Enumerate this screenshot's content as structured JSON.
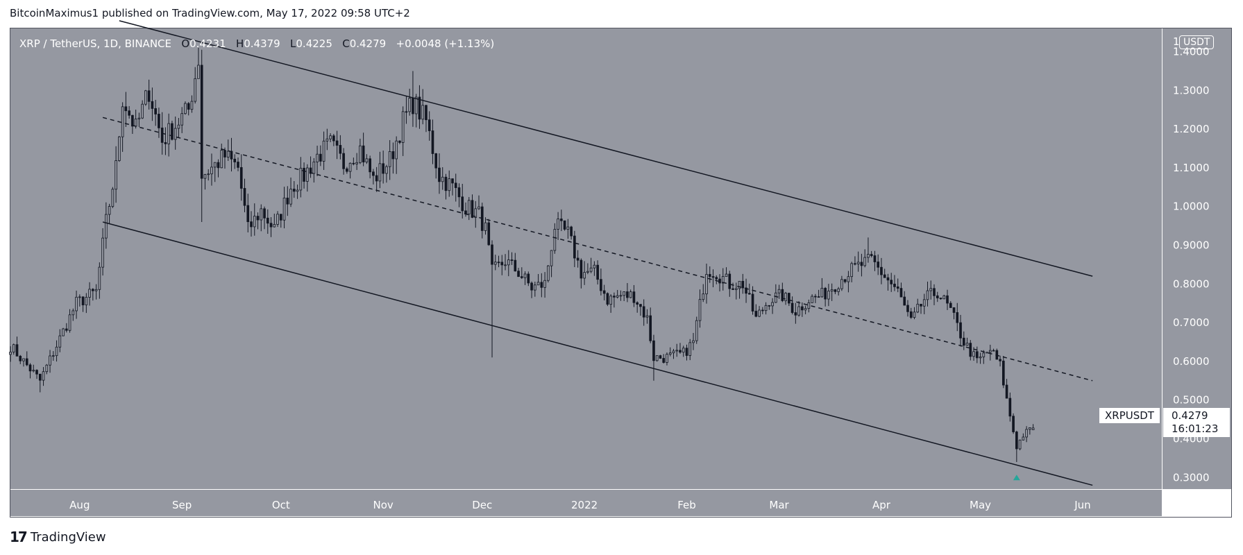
{
  "header": {
    "publisher": "BitcoinMaximus1 published on TradingView.com, May 17, 2022 09:58 UTC+2"
  },
  "legend": {
    "symbol": "XRP / TetherUS, 1D, BINANCE",
    "o_key": "O",
    "o_val": "0.4231",
    "h_key": "H",
    "h_val": "0.4379",
    "l_key": "L",
    "l_val": "0.4225",
    "c_key": "C",
    "c_val": "0.4279",
    "change": "+0.0048 (+1.13%)"
  },
  "badges": {
    "currency": "USDT",
    "symbol": "XRPUSDT",
    "price": "0.4279",
    "countdown": "16:01:23"
  },
  "footer": {
    "brand": "TradingView",
    "logo_icon": "tradingview-logo-icon"
  },
  "colors": {
    "plot_bg": "#9598a1",
    "axis_bg": "#9598a1",
    "candle": "#131722",
    "line": "#131722",
    "marker": "#26a69a"
  },
  "chart_data": {
    "type": "candlestick",
    "title": "XRP / TetherUS, 1D, BINANCE",
    "ylim": [
      0.27,
      1.46
    ],
    "y_ticks": [
      "0.3000",
      "0.4000",
      "0.5000",
      "0.6000",
      "0.7000",
      "0.8000",
      "0.9000",
      "1.0000",
      "1.1000",
      "1.2000",
      "1.3000",
      "1.4000"
    ],
    "x_range": [
      "2021-07-11",
      "2022-06-25"
    ],
    "x_ticks": [
      {
        "date": "2021-08-01",
        "label": "Aug"
      },
      {
        "date": "2021-09-01",
        "label": "Sep"
      },
      {
        "date": "2021-10-01",
        "label": "Oct"
      },
      {
        "date": "2021-11-01",
        "label": "Nov"
      },
      {
        "date": "2021-12-01",
        "label": "Dec"
      },
      {
        "date": "2022-01-01",
        "label": "2022"
      },
      {
        "date": "2022-02-01",
        "label": "Feb"
      },
      {
        "date": "2022-03-01",
        "label": "Mar"
      },
      {
        "date": "2022-04-01",
        "label": "Apr"
      },
      {
        "date": "2022-05-01",
        "label": "May"
      },
      {
        "date": "2022-06-01",
        "label": "Jun"
      }
    ],
    "price_path": [
      [
        "2021-07-11",
        0.64
      ],
      [
        "2021-07-20",
        0.55
      ],
      [
        "2021-07-31",
        0.75
      ],
      [
        "2021-08-06",
        0.78
      ],
      [
        "2021-08-09",
        0.96
      ],
      [
        "2021-08-12",
        1.1
      ],
      [
        "2021-08-14",
        1.28
      ],
      [
        "2021-08-18",
        1.2
      ],
      [
        "2021-08-22",
        1.3
      ],
      [
        "2021-08-26",
        1.17
      ],
      [
        "2021-08-30",
        1.21
      ],
      [
        "2021-09-03",
        1.25
      ],
      [
        "2021-09-06",
        1.38
      ],
      [
        "2021-09-07",
        1.08
      ],
      [
        "2021-09-10",
        1.1
      ],
      [
        "2021-09-14",
        1.13
      ],
      [
        "2021-09-18",
        1.1
      ],
      [
        "2021-09-21",
        0.94
      ],
      [
        "2021-09-25",
        0.99
      ],
      [
        "2021-09-29",
        0.94
      ],
      [
        "2021-10-04",
        1.05
      ],
      [
        "2021-10-08",
        1.08
      ],
      [
        "2021-10-12",
        1.13
      ],
      [
        "2021-10-16",
        1.16
      ],
      [
        "2021-10-20",
        1.11
      ],
      [
        "2021-10-25",
        1.15
      ],
      [
        "2021-10-29",
        1.07
      ],
      [
        "2021-11-03",
        1.12
      ],
      [
        "2021-11-07",
        1.22
      ],
      [
        "2021-11-10",
        1.27
      ],
      [
        "2021-11-14",
        1.22
      ],
      [
        "2021-11-18",
        1.08
      ],
      [
        "2021-11-22",
        1.05
      ],
      [
        "2021-11-26",
        1.0
      ],
      [
        "2021-11-30",
        0.98
      ],
      [
        "2021-12-02",
        0.94
      ],
      [
        "2021-12-04",
        0.83
      ],
      [
        "2021-12-08",
        0.86
      ],
      [
        "2021-12-12",
        0.83
      ],
      [
        "2021-12-16",
        0.79
      ],
      [
        "2021-12-20",
        0.8
      ],
      [
        "2021-12-23",
        0.95
      ],
      [
        "2021-12-27",
        0.93
      ],
      [
        "2021-12-31",
        0.83
      ],
      [
        "2022-01-04",
        0.83
      ],
      [
        "2022-01-08",
        0.76
      ],
      [
        "2022-01-12",
        0.77
      ],
      [
        "2022-01-16",
        0.77
      ],
      [
        "2022-01-20",
        0.71
      ],
      [
        "2022-01-22",
        0.61
      ],
      [
        "2022-01-26",
        0.61
      ],
      [
        "2022-01-31",
        0.62
      ],
      [
        "2022-02-03",
        0.65
      ],
      [
        "2022-02-07",
        0.84
      ],
      [
        "2022-02-10",
        0.83
      ],
      [
        "2022-02-14",
        0.8
      ],
      [
        "2022-02-18",
        0.8
      ],
      [
        "2022-02-22",
        0.71
      ],
      [
        "2022-02-26",
        0.76
      ],
      [
        "2022-03-02",
        0.77
      ],
      [
        "2022-03-06",
        0.73
      ],
      [
        "2022-03-10",
        0.76
      ],
      [
        "2022-03-14",
        0.77
      ],
      [
        "2022-03-18",
        0.8
      ],
      [
        "2022-03-22",
        0.83
      ],
      [
        "2022-03-26",
        0.85
      ],
      [
        "2022-03-29",
        0.86
      ],
      [
        "2022-04-02",
        0.82
      ],
      [
        "2022-04-06",
        0.78
      ],
      [
        "2022-04-10",
        0.7
      ],
      [
        "2022-04-14",
        0.76
      ],
      [
        "2022-04-18",
        0.78
      ],
      [
        "2022-04-22",
        0.73
      ],
      [
        "2022-04-26",
        0.65
      ],
      [
        "2022-04-30",
        0.6
      ],
      [
        "2022-05-04",
        0.63
      ],
      [
        "2022-05-07",
        0.59
      ],
      [
        "2022-05-09",
        0.5
      ],
      [
        "2022-05-12",
        0.38
      ],
      [
        "2022-05-14",
        0.41
      ],
      [
        "2022-05-17",
        0.4279
      ]
    ],
    "extremes": [
      {
        "date": "2021-07-20",
        "value": 0.52
      },
      {
        "date": "2021-09-06",
        "value": 1.41
      },
      {
        "date": "2021-09-07",
        "value": 0.96
      },
      {
        "date": "2021-11-10",
        "value": 1.35
      },
      {
        "date": "2021-12-04",
        "value": 0.61
      },
      {
        "date": "2022-01-22",
        "value": 0.55
      },
      {
        "date": "2022-03-28",
        "value": 0.92
      },
      {
        "date": "2022-05-12",
        "value": 0.34
      }
    ],
    "last_candle": {
      "open": 0.4231,
      "high": 0.4379,
      "low": 0.4225,
      "close": 0.4279
    },
    "trendlines": [
      {
        "name": "upper",
        "style": "solid",
        "points": [
          [
            "2021-08-13",
            1.48
          ],
          [
            "2022-06-04",
            0.82
          ]
        ]
      },
      {
        "name": "middle",
        "style": "dashed",
        "points": [
          [
            "2021-08-08",
            1.23
          ],
          [
            "2022-06-04",
            0.55
          ]
        ]
      },
      {
        "name": "lower",
        "style": "solid",
        "points": [
          [
            "2021-08-08",
            0.96
          ],
          [
            "2022-06-04",
            0.28
          ]
        ]
      }
    ],
    "marker": {
      "type": "up-arrow",
      "date": "2022-05-12",
      "value": 0.3
    }
  }
}
